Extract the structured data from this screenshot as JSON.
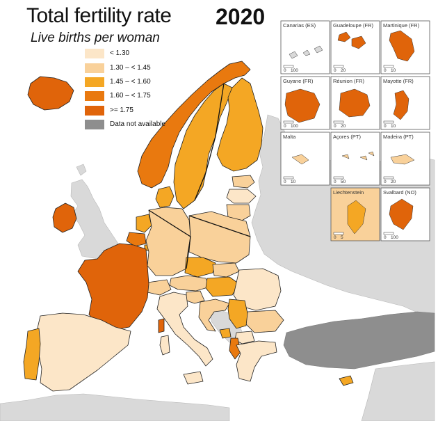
{
  "title": "Total fertility rate",
  "year": "2020",
  "subtitle": "Live births per woman",
  "colors": {
    "lt_1_30": "#fce6c8",
    "c_1_30_1_45": "#f9d19a",
    "c_1_45_1_60": "#f4a724",
    "c_1_60_1_75": "#e9790f",
    "ge_1_75": "#e0640a",
    "na": "#8e8e8e",
    "non_eu": "#d9d9d9",
    "sea": "#ffffff"
  },
  "legend": [
    {
      "label": "< 1.30",
      "color": "#fce6c8"
    },
    {
      "label": "1.30  –  < 1.45",
      "color": "#f9d19a"
    },
    {
      "label": "1.45  –  < 1.60",
      "color": "#f4a724"
    },
    {
      "label": "1.60  –  < 1.75",
      "color": "#e9790f"
    },
    {
      "label": ">= 1.75",
      "color": "#e0640a"
    },
    {
      "label": "Data not available",
      "color": "#8e8e8e"
    }
  ],
  "insets": [
    {
      "name": "Canarias (ES)",
      "scale_left": "0",
      "scale_right": "100"
    },
    {
      "name": "Guadeloupe (FR)",
      "scale_left": "0",
      "scale_right": "20"
    },
    {
      "name": "Martinique (FR)",
      "scale_left": "0",
      "scale_right": "10"
    },
    {
      "name": "Guyane (FR)",
      "scale_left": "0",
      "scale_right": "100"
    },
    {
      "name": "Réunion (FR)",
      "scale_left": "0",
      "scale_right": "20"
    },
    {
      "name": "Mayotte (FR)",
      "scale_left": "0",
      "scale_right": "10"
    },
    {
      "name": "Malta",
      "scale_left": "0",
      "scale_right": "10"
    },
    {
      "name": "Açores (PT)",
      "scale_left": "0",
      "scale_right": "50"
    },
    {
      "name": "Madeira (PT)",
      "scale_left": "0",
      "scale_right": "20"
    },
    {
      "name": "Liechtenstein",
      "scale_left": "0",
      "scale_right": "5"
    },
    {
      "name": "Svalbard (NO)",
      "scale_left": "0",
      "scale_right": "100"
    }
  ]
}
